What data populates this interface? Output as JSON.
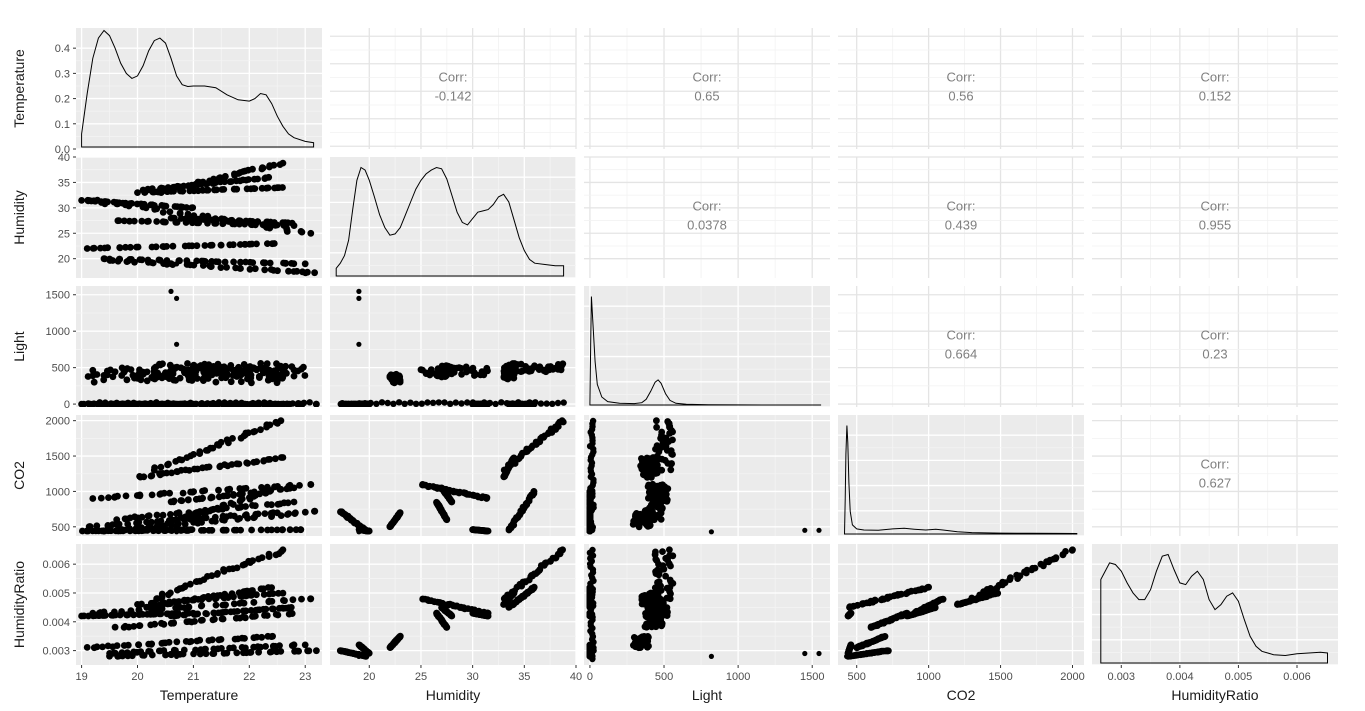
{
  "chart_data": {
    "type": "scatter",
    "variables": [
      "Temperature",
      "Humidity",
      "Light",
      "CO2",
      "HumidityRatio"
    ],
    "corr_label": "Corr:",
    "correlations": [
      {
        "row": "Temperature",
        "col": "Humidity",
        "value": "-0.142"
      },
      {
        "row": "Temperature",
        "col": "Light",
        "value": "0.65"
      },
      {
        "row": "Temperature",
        "col": "CO2",
        "value": "0.56"
      },
      {
        "row": "Temperature",
        "col": "HumidityRatio",
        "value": "0.152"
      },
      {
        "row": "Humidity",
        "col": "Light",
        "value": "0.0378"
      },
      {
        "row": "Humidity",
        "col": "CO2",
        "value": "0.439"
      },
      {
        "row": "Humidity",
        "col": "HumidityRatio",
        "value": "0.955"
      },
      {
        "row": "Light",
        "col": "CO2",
        "value": "0.664"
      },
      {
        "row": "Light",
        "col": "HumidityRatio",
        "value": "0.23"
      },
      {
        "row": "CO2",
        "col": "HumidityRatio",
        "value": "0.627"
      }
    ],
    "axes": {
      "Temperature": {
        "range": [
          18.9,
          23.3
        ],
        "ticks": [
          19,
          20,
          21,
          22,
          23
        ]
      },
      "Humidity": {
        "range": [
          16.2,
          40.0
        ],
        "ticks": [
          20,
          25,
          30,
          35,
          40
        ]
      },
      "Light": {
        "range": [
          -40,
          1620
        ],
        "ticks": [
          0,
          500,
          1000,
          1500
        ]
      },
      "CO2": {
        "range": [
          370,
          2080
        ],
        "ticks": [
          500,
          1000,
          1500,
          2000
        ]
      },
      "HumidityRatio": {
        "range": [
          0.0025,
          0.0067
        ],
        "ticks": [
          0.003,
          0.004,
          0.005,
          0.006
        ]
      }
    },
    "density_y": {
      "range": [
        0,
        0.48
      ],
      "ticks": [
        0.0,
        0.1,
        0.2,
        0.3,
        0.4
      ]
    },
    "densities": {
      "Temperature": [
        [
          19.0,
          0.06
        ],
        [
          19.1,
          0.22
        ],
        [
          19.2,
          0.36
        ],
        [
          19.3,
          0.44
        ],
        [
          19.4,
          0.47
        ],
        [
          19.5,
          0.45
        ],
        [
          19.6,
          0.4
        ],
        [
          19.7,
          0.34
        ],
        [
          19.8,
          0.3
        ],
        [
          19.9,
          0.28
        ],
        [
          20.0,
          0.29
        ],
        [
          20.1,
          0.33
        ],
        [
          20.2,
          0.39
        ],
        [
          20.3,
          0.43
        ],
        [
          20.4,
          0.44
        ],
        [
          20.5,
          0.42
        ],
        [
          20.6,
          0.36
        ],
        [
          20.7,
          0.29
        ],
        [
          20.8,
          0.255
        ],
        [
          20.9,
          0.248
        ],
        [
          21.0,
          0.25
        ],
        [
          21.2,
          0.25
        ],
        [
          21.4,
          0.243
        ],
        [
          21.6,
          0.215
        ],
        [
          21.8,
          0.195
        ],
        [
          22.0,
          0.19
        ],
        [
          22.1,
          0.2
        ],
        [
          22.2,
          0.22
        ],
        [
          22.3,
          0.215
        ],
        [
          22.4,
          0.18
        ],
        [
          22.5,
          0.13
        ],
        [
          22.6,
          0.09
        ],
        [
          22.7,
          0.06
        ],
        [
          22.8,
          0.045
        ],
        [
          23.0,
          0.03
        ],
        [
          23.15,
          0.025
        ]
      ],
      "Humidity": [
        [
          16.8,
          0.006
        ],
        [
          17.2,
          0.01
        ],
        [
          17.6,
          0.016
        ],
        [
          18.0,
          0.028
        ],
        [
          18.4,
          0.052
        ],
        [
          18.8,
          0.075
        ],
        [
          19.2,
          0.085
        ],
        [
          19.6,
          0.083
        ],
        [
          20.0,
          0.075
        ],
        [
          20.5,
          0.062
        ],
        [
          21.0,
          0.048
        ],
        [
          21.5,
          0.038
        ],
        [
          22.0,
          0.032
        ],
        [
          22.5,
          0.033
        ],
        [
          23.0,
          0.038
        ],
        [
          23.5,
          0.048
        ],
        [
          24.0,
          0.058
        ],
        [
          24.5,
          0.068
        ],
        [
          25.0,
          0.075
        ],
        [
          25.5,
          0.08
        ],
        [
          26.0,
          0.083
        ],
        [
          26.5,
          0.085
        ],
        [
          27.0,
          0.084
        ],
        [
          27.5,
          0.076
        ],
        [
          28.0,
          0.063
        ],
        [
          28.5,
          0.05
        ],
        [
          29.0,
          0.042
        ],
        [
          29.5,
          0.04
        ],
        [
          30.0,
          0.045
        ],
        [
          30.5,
          0.05
        ],
        [
          31.0,
          0.051
        ],
        [
          31.5,
          0.052
        ],
        [
          32.0,
          0.056
        ],
        [
          32.5,
          0.062
        ],
        [
          33.0,
          0.064
        ],
        [
          33.5,
          0.058
        ],
        [
          34.0,
          0.044
        ],
        [
          34.5,
          0.03
        ],
        [
          35.0,
          0.02
        ],
        [
          35.5,
          0.013
        ],
        [
          36.0,
          0.01
        ],
        [
          37.0,
          0.009
        ],
        [
          38.0,
          0.008
        ],
        [
          38.8,
          0.008
        ]
      ],
      "Light": [
        [
          0,
          0.0
        ],
        [
          5,
          0.55
        ],
        [
          10,
          0.95
        ],
        [
          20,
          0.72
        ],
        [
          35,
          0.38
        ],
        [
          50,
          0.18
        ],
        [
          80,
          0.07
        ],
        [
          120,
          0.03
        ],
        [
          200,
          0.015
        ],
        [
          300,
          0.012
        ],
        [
          350,
          0.02
        ],
        [
          380,
          0.05
        ],
        [
          410,
          0.12
        ],
        [
          440,
          0.2
        ],
        [
          460,
          0.22
        ],
        [
          480,
          0.19
        ],
        [
          510,
          0.1
        ],
        [
          540,
          0.04
        ],
        [
          580,
          0.015
        ],
        [
          650,
          0.006
        ],
        [
          800,
          0.002
        ],
        [
          1000,
          0.001
        ],
        [
          1200,
          0.0
        ],
        [
          1560,
          0.0
        ]
      ],
      "CO2": [
        [
          415,
          0.0
        ],
        [
          420,
          0.3
        ],
        [
          425,
          0.7
        ],
        [
          432,
          0.95
        ],
        [
          438,
          0.8
        ],
        [
          446,
          0.45
        ],
        [
          455,
          0.2
        ],
        [
          470,
          0.08
        ],
        [
          500,
          0.045
        ],
        [
          550,
          0.035
        ],
        [
          650,
          0.032
        ],
        [
          750,
          0.045
        ],
        [
          830,
          0.05
        ],
        [
          900,
          0.042
        ],
        [
          980,
          0.035
        ],
        [
          1050,
          0.042
        ],
        [
          1100,
          0.035
        ],
        [
          1200,
          0.02
        ],
        [
          1300,
          0.012
        ],
        [
          1500,
          0.008
        ],
        [
          1700,
          0.006
        ],
        [
          1900,
          0.005
        ],
        [
          2030,
          0.004
        ]
      ],
      "HumidityRatio": [
        [
          0.00265,
          0.5
        ],
        [
          0.0028,
          0.6
        ],
        [
          0.0029,
          0.59
        ],
        [
          0.003,
          0.55
        ],
        [
          0.0031,
          0.48
        ],
        [
          0.0032,
          0.42
        ],
        [
          0.0033,
          0.38
        ],
        [
          0.0034,
          0.38
        ],
        [
          0.0035,
          0.44
        ],
        [
          0.0036,
          0.55
        ],
        [
          0.0037,
          0.64
        ],
        [
          0.0038,
          0.65
        ],
        [
          0.0039,
          0.56
        ],
        [
          0.004,
          0.48
        ],
        [
          0.0041,
          0.47
        ],
        [
          0.0042,
          0.52
        ],
        [
          0.0043,
          0.55
        ],
        [
          0.0044,
          0.5
        ],
        [
          0.0045,
          0.38
        ],
        [
          0.0046,
          0.32
        ],
        [
          0.0047,
          0.35
        ],
        [
          0.0048,
          0.4
        ],
        [
          0.0049,
          0.42
        ],
        [
          0.005,
          0.37
        ],
        [
          0.0051,
          0.26
        ],
        [
          0.0052,
          0.16
        ],
        [
          0.0053,
          0.1
        ],
        [
          0.0054,
          0.07
        ],
        [
          0.0056,
          0.05
        ],
        [
          0.0058,
          0.045
        ],
        [
          0.006,
          0.055
        ],
        [
          0.0062,
          0.06
        ],
        [
          0.0064,
          0.065
        ],
        [
          0.00652,
          0.06
        ]
      ]
    },
    "bands": [
      {
        "t": [
          20.3,
          22.6
        ],
        "h": [
          33.0,
          38.8
        ],
        "co2": [
          1300,
          2000
        ],
        "hr": [
          0.0048,
          0.0065
        ],
        "l": 500
      },
      {
        "t": [
          20.0,
          22.6
        ],
        "h": [
          33.0,
          34.0
        ],
        "co2": [
          1200,
          1480
        ],
        "hr": [
          0.0046,
          0.005
        ],
        "l": 400
      },
      {
        "t": [
          19.2,
          23.1
        ],
        "h": [
          31.5,
          25.0
        ],
        "co2": [
          900,
          1100
        ],
        "hr": [
          0.0043,
          0.0048
        ],
        "l": 450
      },
      {
        "t": [
          20.6,
          22.8
        ],
        "h": [
          28.0,
          27.0
        ],
        "co2": [
          850,
          1050
        ],
        "hr": [
          0.0042,
          0.0045
        ],
        "l": 470
      },
      {
        "t": [
          19.6,
          22.8
        ],
        "h": [
          27.5,
          26.5
        ],
        "co2": [
          600,
          850
        ],
        "hr": [
          0.0038,
          0.0043
        ],
        "l": 430
      },
      {
        "t": [
          19.1,
          22.5
        ],
        "h": [
          22.0,
          23.0
        ],
        "co2": [
          500,
          700
        ],
        "hr": [
          0.0031,
          0.0035
        ],
        "l": 350
      },
      {
        "t": [
          19.4,
          23.0
        ],
        "h": [
          20.0,
          19.0
        ],
        "co2": [
          440,
          460
        ],
        "hr": [
          0.0029,
          0.0032
        ],
        "l": 0
      },
      {
        "t": [
          19.5,
          23.2
        ],
        "h": [
          19.7,
          17.2
        ],
        "co2": [
          440,
          720
        ],
        "hr": [
          0.0028,
          0.003
        ],
        "l": 0
      },
      {
        "t": [
          20.1,
          22.4
        ],
        "h": [
          33.5,
          36.0
        ],
        "co2": [
          450,
          1000
        ],
        "hr": [
          0.0045,
          0.0052
        ],
        "l": 0
      },
      {
        "t": [
          19.0,
          21.0
        ],
        "h": [
          31.5,
          30.0
        ],
        "co2": [
          440,
          460
        ],
        "hr": [
          0.0042,
          0.0043
        ],
        "l": 0
      }
    ],
    "outliers": [
      {
        "t": 20.6,
        "h": 19.0,
        "l": 1546,
        "co2": 450,
        "hr": 0.0029
      },
      {
        "t": 20.7,
        "h": 19.0,
        "l": 1450,
        "co2": 450,
        "hr": 0.0029
      },
      {
        "t": 20.7,
        "h": 19.0,
        "l": 820,
        "co2": 430,
        "hr": 0.0028
      }
    ]
  }
}
